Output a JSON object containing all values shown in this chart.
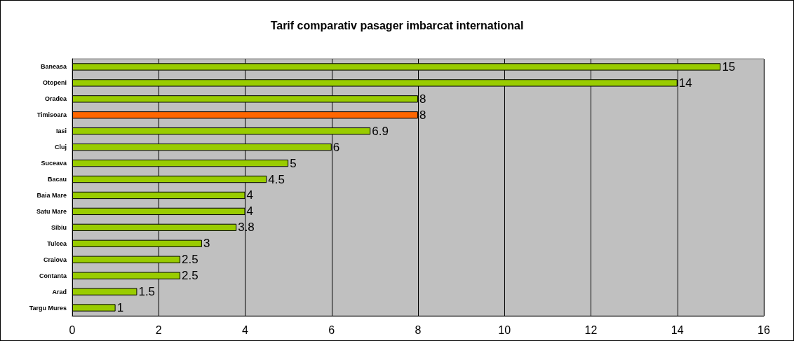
{
  "chart_data": {
    "type": "bar",
    "orientation": "horizontal",
    "title": "Tarif comparativ pasager imbarcat international",
    "categories": [
      "Baneasa",
      "Otopeni",
      "Oradea",
      "Timisoara",
      "Iasi",
      "Cluj",
      "Suceava",
      "Bacau",
      "Baia Mare",
      "Satu Mare",
      "Sibiu",
      "Tulcea",
      "Craiova",
      "Contanta",
      "Arad",
      "Targu Mures"
    ],
    "values": [
      15,
      14,
      8,
      8,
      6.9,
      6,
      5,
      4.5,
      4,
      4,
      3.8,
      3,
      2.5,
      2.5,
      1.5,
      1
    ],
    "colors": [
      "#99cc00",
      "#99cc00",
      "#99cc00",
      "#ff6600",
      "#99cc00",
      "#99cc00",
      "#99cc00",
      "#99cc00",
      "#99cc00",
      "#99cc00",
      "#99cc00",
      "#99cc00",
      "#99cc00",
      "#99cc00",
      "#99cc00",
      "#99cc00"
    ],
    "xlim": [
      0,
      16
    ],
    "xticks": [
      0,
      2,
      4,
      6,
      8,
      10,
      12,
      14,
      16
    ],
    "grid": "x",
    "data_labels": true
  }
}
